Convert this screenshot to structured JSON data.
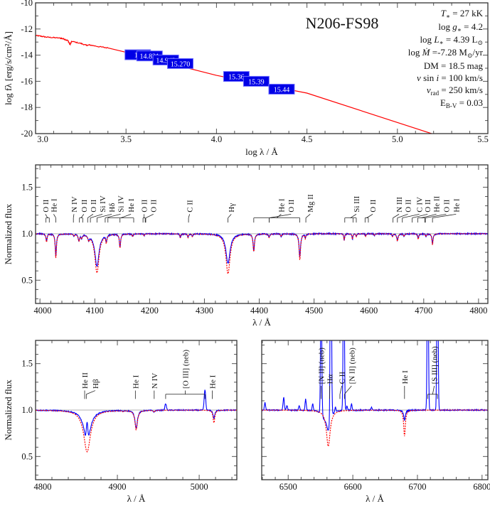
{
  "chart_data": [
    {
      "type": "line",
      "title": "N206-FS98",
      "xlabel": "log λ / Å",
      "ylabel": "log fλ [erg/s/cm²/Å]",
      "xlim": [
        3.0,
        5.5
      ],
      "ylim": [
        -20,
        -10
      ],
      "xticks": [
        "3.0",
        "3.5",
        "4.0",
        "4.5",
        "5.0",
        "5.5"
      ],
      "yticks": [
        "-10",
        "-12",
        "-14",
        "-16",
        "-18",
        "-20"
      ],
      "colors": {
        "model": "#ff0000",
        "photometry": "#0000e6"
      },
      "model_sed": [
        [
          3.0,
          -12.5
        ],
        [
          3.03,
          -12.55
        ],
        [
          3.06,
          -12.62
        ],
        [
          3.1,
          -12.66
        ],
        [
          3.14,
          -12.7
        ],
        [
          3.16,
          -12.78
        ],
        [
          3.18,
          -12.9
        ],
        [
          3.19,
          -13.2
        ],
        [
          3.2,
          -12.95
        ],
        [
          3.25,
          -13.1
        ],
        [
          3.28,
          -13.25
        ],
        [
          3.3,
          -13.22
        ],
        [
          3.35,
          -13.35
        ],
        [
          3.4,
          -13.45
        ],
        [
          3.5,
          -13.78
        ],
        [
          4.0,
          -15.55
        ],
        [
          4.5,
          -16.9
        ],
        [
          5.2,
          -20.05
        ]
      ],
      "photometry": [
        {
          "x": 3.565,
          "y": -13.97,
          "label": "14"
        },
        {
          "x": 3.63,
          "y": -14.06,
          "label": "14.821"
        },
        {
          "x": 3.72,
          "y": -14.37,
          "label": "14.942"
        },
        {
          "x": 3.8,
          "y": -14.64,
          "label": "15.270"
        },
        {
          "x": 4.11,
          "y": -15.63,
          "label": "15.36"
        },
        {
          "x": 4.22,
          "y": -16.0,
          "label": "15.39"
        },
        {
          "x": 4.36,
          "y": -16.6,
          "label": "15.44"
        }
      ],
      "parameters": [
        [
          {
            "t": "T",
            "i": true
          },
          {
            "t": "∗",
            "sub": true
          },
          {
            "t": "  = 27 kK"
          }
        ],
        [
          {
            "t": "log "
          },
          {
            "t": "g",
            "i": true
          },
          {
            "t": "∗",
            "sub": true
          },
          {
            "t": "  =  4.2"
          }
        ],
        [
          {
            "t": "log "
          },
          {
            "t": "L",
            "i": true
          },
          {
            "t": "∗",
            "sub": true
          },
          {
            "t": " = 4.39 L"
          },
          {
            "t": "⊙",
            "sub": true
          }
        ],
        [
          {
            "t": "log "
          },
          {
            "t": "Ṁ",
            "i": true
          },
          {
            "t": "  =-7.28 M"
          },
          {
            "t": "⊙",
            "sub": true
          },
          {
            "t": "/yr"
          }
        ],
        [
          {
            "t": "DM = 18.5 mag"
          }
        ],
        [
          {
            "t": "v",
            "i": true
          },
          {
            "t": " sin "
          },
          {
            "t": "i",
            "i": true
          },
          {
            "t": " = 100 km/s"
          }
        ],
        [
          {
            "t": "v",
            "i": true
          },
          {
            "t": "rad",
            "sub": true
          },
          {
            "t": " = 250 km/s"
          }
        ],
        [
          {
            "t": "E"
          },
          {
            "t": "B-V",
            "sub": true
          },
          {
            "t": " = 0.03"
          }
        ]
      ]
    },
    {
      "type": "line",
      "xlabel": "λ / Å",
      "ylabel": "Normalized flux",
      "xlim": [
        3992,
        4817
      ],
      "ylim": [
        0.25,
        1.74
      ],
      "xticks": [
        "4000",
        "4100",
        "4200",
        "4300",
        "4400",
        "4500",
        "4600",
        "4700",
        "4800"
      ],
      "yticks": [
        "0.5",
        "1.0",
        "1.5"
      ],
      "colors": {
        "observed": "#0000ff",
        "model": "#ff0000"
      },
      "absorption_lines": [
        [
          4012,
          0.09,
          0.08,
          1.2
        ],
        [
          4029,
          0.26,
          0.24,
          1.3
        ],
        [
          4062,
          0.02,
          0.02,
          1
        ],
        [
          4071,
          0.07,
          0.07,
          1.5
        ],
        [
          4076,
          0.04,
          0.04,
          1.5
        ],
        [
          4089,
          0.05,
          0.05,
          1.5
        ],
        [
          4104,
          0.42,
          0.35,
          4.5
        ],
        [
          4121,
          0.08,
          0.07,
          1.2
        ],
        [
          4146,
          0.15,
          0.14,
          1.3
        ],
        [
          4169,
          0.03,
          0.03,
          1
        ],
        [
          4190,
          0.02,
          0.02,
          1
        ],
        [
          4256,
          0.04,
          0.04,
          1
        ],
        [
          4270,
          0.04,
          0.04,
          1
        ],
        [
          4278,
          0.03,
          0.03,
          1
        ],
        [
          4343,
          0.43,
          0.32,
          4.5
        ],
        [
          4390,
          0.19,
          0.18,
          1.5
        ],
        [
          4418,
          0.04,
          0.03,
          1.5
        ],
        [
          4440,
          0.03,
          0.03,
          1
        ],
        [
          4474,
          0.28,
          0.25,
          1.6
        ],
        [
          4484,
          0.05,
          0.04,
          1
        ],
        [
          4555,
          0.07,
          0.07,
          0.9
        ],
        [
          4570,
          0.06,
          0.06,
          0.9
        ],
        [
          4577,
          0.03,
          0.03,
          0.9
        ],
        [
          4594,
          0.03,
          0.02,
          1
        ],
        [
          4610,
          0.02,
          0.02,
          1
        ],
        [
          4643,
          0.03,
          0.03,
          1
        ],
        [
          4652,
          0.08,
          0.07,
          1.5
        ],
        [
          4664,
          0.03,
          0.03,
          1
        ],
        [
          4690,
          0.06,
          0.05,
          1.2
        ],
        [
          4704,
          0.03,
          0.03,
          1
        ],
        [
          4716,
          0.12,
          0.11,
          1.2
        ]
      ],
      "emission_lines": [],
      "annotations": [
        {
          "label": "O II",
          "lines": [
            4011,
            4017
          ],
          "label_at": 4010
        },
        {
          "label": "He I",
          "lines": [
            4029
          ],
          "label_at": 4025
        },
        {
          "label": "N IV",
          "lines": [
            4061
          ],
          "label_at": 4062
        },
        {
          "label": "O II",
          "lines": [
            4072,
            4078
          ],
          "label_at": 4080
        },
        {
          "label": "O II",
          "lines": [
            4087
          ],
          "label_at": 4097
        },
        {
          "label": "Si IV",
          "lines": [
            4092
          ],
          "label_at": 4114
        },
        {
          "label": "Hδ",
          "lines": [
            4104
          ],
          "label_at": 4131
        },
        {
          "label": "Si IV",
          "lines": [
            4119
          ],
          "label_at": 4147
        },
        {
          "label": "He I",
          "lines": [
            4124,
            4146,
            4171
          ],
          "label_at": 4166
        },
        {
          "label": "O II",
          "lines": [
            4188,
            4192
          ],
          "label_at": 4190
        },
        {
          "label": "O II",
          "lines": [
            4193
          ],
          "label_at": 4207
        },
        {
          "label": "C II",
          "lines": [
            4271
          ],
          "label_at": 4273
        },
        {
          "label": "Hγ",
          "lines": [
            4343
          ],
          "label_at": 4349
        },
        {
          "label": "He I",
          "lines": [
            4390,
            4474
          ],
          "label_at": 4440
        },
        {
          "label": "O II",
          "lines": [
            4418,
            4418
          ],
          "label_at": 4458
        },
        {
          "label": "Mg II",
          "lines": [
            4485
          ],
          "label_at": 4493
        },
        {
          "label": "Si III",
          "lines": [
            4556,
            4571,
            4577
          ],
          "label_at": 4577
        },
        {
          "label": "O II",
          "lines": [
            4593,
            4599
          ],
          "label_at": 4607
        },
        {
          "label": "N III",
          "lines": [
            4644
          ],
          "label_at": 4655
        },
        {
          "label": "O II",
          "lines": [
            4652
          ],
          "label_at": 4671
        },
        {
          "label": "C IV",
          "lines": [
            4661
          ],
          "label_at": 4692
        },
        {
          "label": "O II",
          "lines": [
            4679
          ],
          "label_at": 4707
        },
        {
          "label": "He II",
          "lines": [
            4689,
            4702
          ],
          "label_at": 4723
        },
        {
          "label": "O II",
          "lines": [
            4703
          ],
          "label_at": 4741
        },
        {
          "label": "He I",
          "lines": [
            4716
          ],
          "label_at": 4759
        }
      ]
    },
    {
      "type": "line",
      "xlabel": "λ / Å",
      "ylabel": "Normalized flux",
      "xlim": [
        4800,
        5046
      ],
      "ylim": [
        0.25,
        1.75
      ],
      "xticks": [
        "4800",
        "4900",
        "5000"
      ],
      "yticks": [
        "0.5",
        "1.0",
        "1.5"
      ],
      "colors": {
        "observed": "#0000ff",
        "model": "#ff0000"
      },
      "absorption_lines": [
        [
          4863,
          0.45,
          0.33,
          5
        ],
        [
          4907,
          0.01,
          0.01,
          1
        ],
        [
          4923,
          0.21,
          0.19,
          1.8
        ],
        [
          4945,
          0.02,
          0.02,
          1
        ],
        [
          5018,
          0.14,
          0.09,
          1.2
        ]
      ],
      "emission_lines": [
        [
          4863,
          0.2
        ],
        [
          4959,
          0.07
        ],
        [
          5007,
          0.22
        ]
      ],
      "annotations": [
        {
          "label": "He II",
          "lines": [
            4860
          ],
          "label_at": 4860
        },
        {
          "label": "Hβ",
          "lines": [
            4862
          ],
          "label_at": 4873
        },
        {
          "label": "He I",
          "lines": [
            4922
          ],
          "label_at": 4922
        },
        {
          "label": "N IV",
          "lines": [
            4945
          ],
          "label_at": 4945
        },
        {
          "label": "[O III] (neb)",
          "lines": [
            4959,
            5007
          ],
          "label_at": 4983
        },
        {
          "label": "He I",
          "lines": [
            5016
          ],
          "label_at": 5016
        }
      ]
    },
    {
      "type": "line",
      "xlabel": "λ / Å",
      "ylabel": "",
      "xlim": [
        6459,
        6809
      ],
      "ylim": [
        0.25,
        1.75
      ],
      "xticks": [
        "6500",
        "6600",
        "6700",
        "6800"
      ],
      "yticks": [],
      "colors": {
        "observed": "#0000ff",
        "model": "#ff0000"
      },
      "absorption_lines": [
        [
          6562,
          0.39,
          0.2,
          3.5
        ],
        [
          6556,
          0.0,
          0.06,
          4
        ],
        [
          6680,
          0.28,
          0.11,
          1.5
        ]
      ],
      "emission_lines": [
        [
          6464,
          0.08
        ],
        [
          6493,
          0.14
        ],
        [
          6498,
          0.05
        ],
        [
          6517,
          0.05
        ],
        [
          6527,
          0.12
        ],
        [
          6538,
          0.07
        ],
        [
          6551,
          1.5
        ],
        [
          6566,
          3.0
        ],
        [
          6573,
          0.05
        ],
        [
          6586,
          2.0
        ],
        [
          6591,
          0.05
        ],
        [
          6598,
          0.07
        ],
        [
          6629,
          0.03
        ],
        [
          6716,
          2.0
        ],
        [
          6731,
          2.0
        ]
      ],
      "annotations": [
        {
          "label": "[N II] (neb)",
          "lines": [
            6551
          ],
          "label_at": 6551
        },
        {
          "label": "Hα",
          "lines": [
            6564
          ],
          "label_at": 6564
        },
        {
          "label": "C II",
          "lines": [
            6580
          ],
          "label_at": 6583
        },
        {
          "label": "[N II] (neb)",
          "lines": [
            6587
          ],
          "label_at": 6598
        },
        {
          "label": "He I",
          "lines": [
            6680
          ],
          "label_at": 6680
        },
        {
          "label": "[S III] (neb)",
          "lines": [
            6716,
            6731
          ],
          "label_at": 6726
        }
      ]
    }
  ]
}
